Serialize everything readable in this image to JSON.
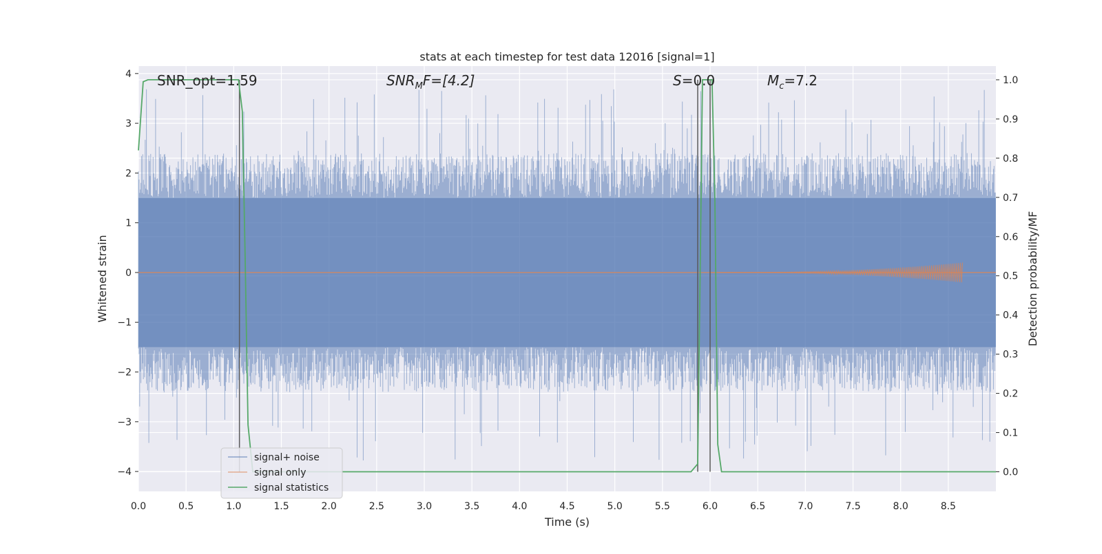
{
  "chart_data": {
    "type": "line",
    "title": "stats at each timestep for test data 12016 [signal=1]",
    "xlabel": "Time (s)",
    "ylabel": "Whitened strain",
    "y2label": "Detection probability/MF",
    "xlim": [
      0.0,
      9.0
    ],
    "ylim": [
      -4.4,
      4.15
    ],
    "y2lim": [
      -0.05,
      1.035
    ],
    "x_ticks": [
      "0.0",
      "0.5",
      "1.0",
      "1.5",
      "2.0",
      "2.5",
      "3.0",
      "3.5",
      "4.0",
      "4.5",
      "5.0",
      "5.5",
      "6.0",
      "6.5",
      "7.0",
      "7.5",
      "8.0",
      "8.5"
    ],
    "y_ticks": [
      "4",
      "3",
      "2",
      "1",
      "0",
      "−1",
      "−2",
      "−3",
      "−4"
    ],
    "y2_ticks": [
      "1.0",
      "0.9",
      "0.8",
      "0.7",
      "0.6",
      "0.5",
      "0.4",
      "0.3",
      "0.2",
      "0.1",
      "0.0"
    ],
    "grid": true,
    "legend_position": "lower-left",
    "annotations": {
      "snr_opt": "SNR_opt=1.59",
      "snr_mf_main": "SNR",
      "snr_mf_sub": "M",
      "snr_mf_rest": "F=[4.2]",
      "s_main": "S",
      "s_rest": "=0.0",
      "mc_main": "M",
      "mc_sub": "c",
      "mc_rest": "=7.2"
    },
    "vertical_markers_x": [
      1.06,
      5.87,
      6.0
    ],
    "series": [
      {
        "name": "signal+ noise",
        "color": "#4c72b0",
        "description_values": {
          "mean": 0.0,
          "typical_extent": [
            -2.3,
            2.3
          ],
          "peak_max": 3.8,
          "peak_min": -4.0
        }
      },
      {
        "name": "signal only",
        "color": "#dd8452",
        "description_values": {
          "flat_value": 0.0,
          "chirp_end_x": 8.65,
          "chirp_end_amplitude": 0.2
        }
      },
      {
        "name": "signal statistics",
        "color": "#55a868",
        "axis": "right",
        "x": [
          0.0,
          0.05,
          0.1,
          0.2,
          0.4,
          0.6,
          0.8,
          0.98,
          1.05,
          1.09,
          1.12,
          1.15,
          1.2,
          1.5,
          2.0,
          2.5,
          3.0,
          3.5,
          4.0,
          4.5,
          5.0,
          5.5,
          5.8,
          5.87,
          5.9,
          5.92,
          5.95,
          6.0,
          6.02,
          6.05,
          6.08,
          6.12,
          6.5,
          7.0,
          7.5,
          8.0,
          8.5,
          9.0
        ],
        "y": [
          0.82,
          0.995,
          1.0,
          1.0,
          1.0,
          1.0,
          1.0,
          1.0,
          1.0,
          0.92,
          0.55,
          0.12,
          0.0,
          0.0,
          0.0,
          0.0,
          0.0,
          0.0,
          0.0,
          0.0,
          0.0,
          0.0,
          0.0,
          0.02,
          0.6,
          1.0,
          1.0,
          1.0,
          1.0,
          0.7,
          0.07,
          0.0,
          0.0,
          0.0,
          0.0,
          0.0,
          0.0,
          0.0
        ]
      }
    ],
    "legend": [
      "signal+ noise",
      "signal only",
      "signal statistics"
    ]
  }
}
